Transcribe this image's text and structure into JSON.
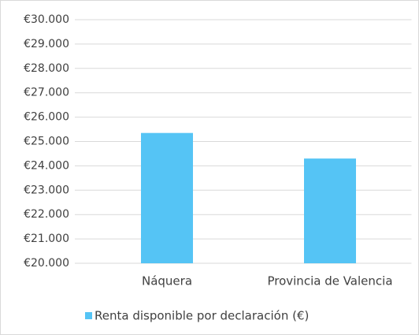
{
  "chart_data": {
    "type": "bar",
    "categories": [
      "Náquera",
      "Provincia de Valencia"
    ],
    "series": [
      {
        "name": "Renta disponible por declaración (€)",
        "color": "#55c4f5",
        "values": [
          25350,
          24300
        ]
      }
    ],
    "ylim": [
      20000,
      30000
    ],
    "yticks": [
      {
        "value": 20000,
        "label": "€20.000"
      },
      {
        "value": 21000,
        "label": "€21.000"
      },
      {
        "value": 22000,
        "label": "€22.000"
      },
      {
        "value": 23000,
        "label": "€23.000"
      },
      {
        "value": 24000,
        "label": "€24.000"
      },
      {
        "value": 25000,
        "label": "€25.000"
      },
      {
        "value": 26000,
        "label": "€26.000"
      },
      {
        "value": 27000,
        "label": "€27.000"
      },
      {
        "value": 28000,
        "label": "€28.000"
      },
      {
        "value": 29000,
        "label": "€29.000"
      },
      {
        "value": 30000,
        "label": "€30.000"
      }
    ],
    "grid": true,
    "legend": "bottom"
  }
}
